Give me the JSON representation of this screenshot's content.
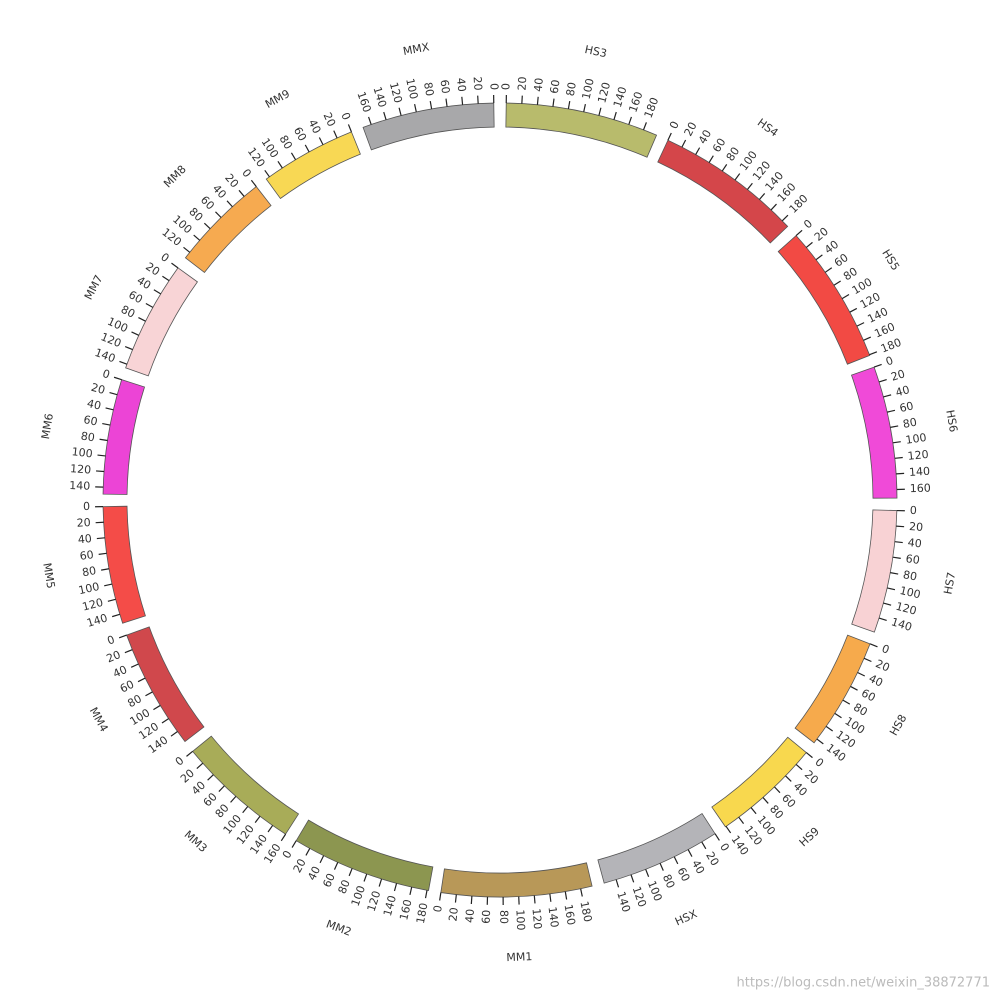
{
  "chart_data": {
    "type": "circos",
    "segments": [
      {
        "name": "HS3",
        "length": 198,
        "color": "#b8bb6c",
        "reversed": false,
        "ticks": [
          0,
          20,
          40,
          60,
          80,
          100,
          120,
          140,
          160,
          180
        ]
      },
      {
        "name": "HS4",
        "length": 190,
        "color": "#d4464a",
        "reversed": false,
        "ticks": [
          0,
          20,
          40,
          60,
          80,
          100,
          120,
          140,
          160,
          180
        ]
      },
      {
        "name": "HS5",
        "length": 181,
        "color": "#f24a44",
        "reversed": false,
        "ticks": [
          0,
          20,
          40,
          60,
          80,
          100,
          120,
          140,
          160,
          180
        ]
      },
      {
        "name": "HS6",
        "length": 171,
        "color": "#f04ad8",
        "reversed": false,
        "ticks": [
          0,
          20,
          40,
          60,
          80,
          100,
          120,
          140,
          160
        ]
      },
      {
        "name": "HS7",
        "length": 159,
        "color": "#f8d2d4",
        "reversed": false,
        "ticks": [
          0,
          20,
          40,
          60,
          80,
          100,
          120,
          140
        ]
      },
      {
        "name": "HS8",
        "length": 146,
        "color": "#f6aa4c",
        "reversed": false,
        "ticks": [
          0,
          20,
          40,
          60,
          80,
          100,
          120,
          140
        ]
      },
      {
        "name": "HS9",
        "length": 141,
        "color": "#f8d84e",
        "reversed": false,
        "ticks": [
          0,
          20,
          40,
          60,
          80,
          100,
          120,
          140
        ]
      },
      {
        "name": "HSX",
        "length": 156,
        "color": "#b4b4b8",
        "reversed": false,
        "ticks": [
          0,
          20,
          40,
          60,
          80,
          100,
          120,
          140
        ]
      },
      {
        "name": "MM1",
        "length": 195,
        "color": "#b89858",
        "reversed": true,
        "ticks": [
          0,
          20,
          40,
          60,
          80,
          100,
          120,
          140,
          160,
          180
        ]
      },
      {
        "name": "MM2",
        "length": 182,
        "color": "#8c9650",
        "reversed": true,
        "ticks": [
          0,
          20,
          40,
          60,
          80,
          100,
          120,
          140,
          160,
          180
        ]
      },
      {
        "name": "MM3",
        "length": 160,
        "color": "#a8ac58",
        "reversed": true,
        "ticks": [
          0,
          20,
          40,
          60,
          80,
          100,
          120,
          140,
          160
        ]
      },
      {
        "name": "MM4",
        "length": 156,
        "color": "#d0484c",
        "reversed": true,
        "ticks": [
          0,
          20,
          40,
          60,
          80,
          100,
          120,
          140
        ]
      },
      {
        "name": "MM5",
        "length": 152,
        "color": "#f44c48",
        "reversed": true,
        "ticks": [
          0,
          20,
          40,
          60,
          80,
          100,
          120,
          140
        ]
      },
      {
        "name": "MM6",
        "length": 149,
        "color": "#ec44d6",
        "reversed": true,
        "ticks": [
          0,
          20,
          40,
          60,
          80,
          100,
          120,
          140
        ]
      },
      {
        "name": "MM7",
        "length": 145,
        "color": "#f8d4d6",
        "reversed": true,
        "ticks": [
          0,
          20,
          40,
          60,
          80,
          100,
          120,
          140
        ]
      },
      {
        "name": "MM8",
        "length": 129,
        "color": "#f6aa50",
        "reversed": true,
        "ticks": [
          0,
          20,
          40,
          60,
          80,
          100,
          120
        ]
      },
      {
        "name": "MM9",
        "length": 125,
        "color": "#f8d854",
        "reversed": true,
        "ticks": [
          0,
          20,
          40,
          60,
          80,
          100,
          120
        ]
      },
      {
        "name": "MMX",
        "length": 171,
        "color": "#a8a8aa",
        "reversed": true,
        "ticks": [
          0,
          20,
          40,
          60,
          80,
          100,
          120,
          140,
          160
        ]
      }
    ]
  },
  "watermark": "https://blog.csdn.net/weixin_38872771"
}
